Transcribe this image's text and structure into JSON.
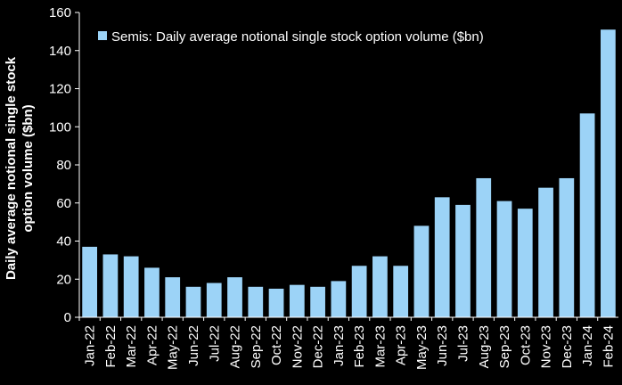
{
  "chart_data": {
    "type": "bar",
    "title": "",
    "xlabel": "",
    "ylabel": "Daily average notional single stock option volume ($bn)",
    "ylim": [
      0,
      160
    ],
    "yticks": [
      0,
      20,
      40,
      60,
      80,
      100,
      120,
      140,
      160
    ],
    "legend_position": "top",
    "grid": false,
    "series": [
      {
        "name": "Semis: Daily average notional single stock option volume ($bn)",
        "color": "#9cd3f7",
        "values": [
          37,
          33,
          32,
          26,
          21,
          16,
          18,
          21,
          16,
          15,
          17,
          16,
          19,
          27,
          32,
          27,
          48,
          63,
          59,
          73,
          61,
          57,
          68,
          73,
          107,
          151
        ]
      }
    ],
    "categories": [
      "Jan-22",
      "Feb-22",
      "Mar-22",
      "Apr-22",
      "May-22",
      "Jun-22",
      "Jul-22",
      "Aug-22",
      "Sep-22",
      "Oct-22",
      "Nov-22",
      "Dec-22",
      "Jan-23",
      "Feb-23",
      "Mar-23",
      "Apr-23",
      "May-23",
      "Jun-23",
      "Jul-23",
      "Aug-23",
      "Sep-23",
      "Oct-23",
      "Nov-23",
      "Dec-23",
      "Jan-24",
      "Feb-24"
    ]
  },
  "colors": {
    "background": "#000000",
    "axis": "#ffffff",
    "text": "#ffffff"
  }
}
